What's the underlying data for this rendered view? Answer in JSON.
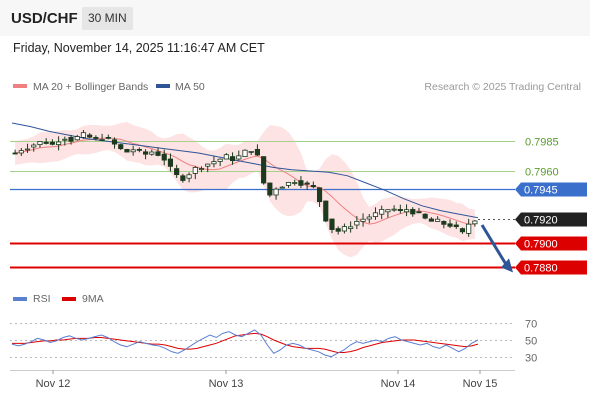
{
  "header": {
    "symbol": "USD/CHF",
    "timeframe": "30 MIN",
    "datetime": "Friday, November 14, 2025 11:16:47 AM CET"
  },
  "legend": {
    "ma20_bb": "MA 20 + Bollinger Bands",
    "ma50": "MA 50",
    "rsi": "RSI",
    "rsi_ma": "9MA"
  },
  "research_credit": "Research © 2025 Trading Central",
  "colors": {
    "ma20": "#f08080",
    "bollinger_fill": "#fde0e0",
    "ma50": "#2f5597",
    "candle": "#1e3a1e",
    "target": "#dd0000",
    "entry": "#3a6fcc",
    "resistance": "#7ab648",
    "last": "#222222",
    "rsi": "#5b7fcf",
    "rsi_ma": "#dd0000"
  },
  "chart_data": [
    {
      "type": "candlestick",
      "x_labels": [
        "Nov 12",
        "Nov 13",
        "Nov 14",
        "Nov 15"
      ],
      "ylim": [
        0.7865,
        0.8015
      ],
      "levels": [
        {
          "label": "0.7985",
          "value": 0.7985,
          "role": "resistance",
          "style": "text-green"
        },
        {
          "label": "0.7960",
          "value": 0.796,
          "role": "resistance",
          "style": "text-green"
        },
        {
          "label": "0.7945",
          "value": 0.7945,
          "role": "pivot",
          "style": "box-blue"
        },
        {
          "label": "0.7920",
          "value": 0.792,
          "role": "last",
          "style": "box-dark"
        },
        {
          "label": "0.7900",
          "value": 0.79,
          "role": "target",
          "style": "box-red"
        },
        {
          "label": "0.7880",
          "value": 0.788,
          "role": "target",
          "style": "box-red"
        }
      ],
      "price_path": [
        0.7975,
        0.7978,
        0.798,
        0.7982,
        0.7984,
        0.7984,
        0.7982,
        0.7986,
        0.7988,
        0.7986,
        0.7988,
        0.799,
        0.7988,
        0.7986,
        0.7988,
        0.7986,
        0.7982,
        0.7978,
        0.7976,
        0.7978,
        0.7976,
        0.7974,
        0.7976,
        0.7974,
        0.797,
        0.7962,
        0.7956,
        0.7954,
        0.7958,
        0.7962,
        0.7964,
        0.7966,
        0.7968,
        0.797,
        0.7972,
        0.797,
        0.7972,
        0.7976,
        0.7978,
        0.7972,
        0.795,
        0.794,
        0.7946,
        0.7948,
        0.795,
        0.7952,
        0.795,
        0.7948,
        0.7946,
        0.7935,
        0.792,
        0.7912,
        0.791,
        0.7912,
        0.7915,
        0.7918,
        0.792,
        0.7922,
        0.7924,
        0.7926,
        0.7928,
        0.7928,
        0.7926,
        0.7928,
        0.7926,
        0.7924,
        0.792,
        0.7918,
        0.7918,
        0.7916,
        0.7915,
        0.7912,
        0.7908,
        0.7916,
        0.792
      ],
      "ma50_path": [
        0.8,
        0.7997,
        0.7993,
        0.799,
        0.7987,
        0.7985,
        0.7983,
        0.7981,
        0.7979,
        0.7977,
        0.7975,
        0.7972,
        0.7969,
        0.7966,
        0.7963,
        0.7961,
        0.796,
        0.7959,
        0.7956,
        0.795,
        0.7944,
        0.7937,
        0.7931,
        0.7927,
        0.7924,
        0.7921
      ],
      "projection_arrow": {
        "from": 0.7915,
        "to": 0.7878
      }
    },
    {
      "type": "line",
      "name": "RSI",
      "yticks": [
        70,
        50,
        30
      ],
      "ylim": [
        20,
        80
      ],
      "rsi": [
        45,
        43,
        45,
        48,
        52,
        50,
        47,
        49,
        53,
        55,
        52,
        50,
        52,
        54,
        56,
        53,
        48,
        44,
        42,
        45,
        48,
        46,
        44,
        43,
        40,
        36,
        34,
        38,
        43,
        48,
        52,
        56,
        53,
        58,
        60,
        56,
        54,
        58,
        62,
        56,
        44,
        34,
        38,
        44,
        46,
        44,
        40,
        38,
        36,
        32,
        30,
        34,
        38,
        44,
        48,
        46,
        48,
        50,
        48,
        52,
        54,
        50,
        48,
        46,
        44,
        46,
        42,
        40,
        44,
        40,
        36,
        40,
        46,
        50
      ],
      "ma9": [
        46,
        46,
        46,
        47,
        48,
        49,
        49,
        50,
        50,
        51,
        52,
        52,
        52,
        53,
        53,
        52,
        51,
        50,
        49,
        48,
        47,
        46,
        45,
        45,
        44,
        42,
        40,
        39,
        39,
        40,
        42,
        44,
        46,
        49,
        52,
        55,
        56,
        57,
        58,
        57,
        54,
        50,
        47,
        44,
        42,
        41,
        40,
        40,
        40,
        39,
        37,
        35,
        35,
        36,
        38,
        41,
        43,
        45,
        47,
        48,
        49,
        50,
        50,
        50,
        49,
        48,
        47,
        46,
        45,
        44,
        43,
        42,
        43,
        45
      ]
    }
  ]
}
